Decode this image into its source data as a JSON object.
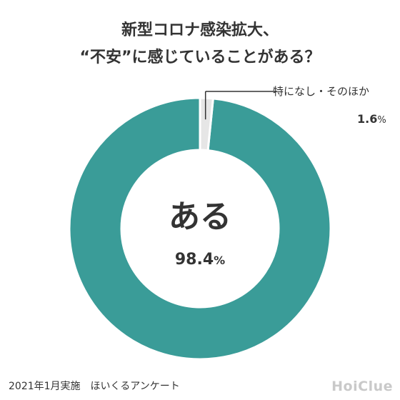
{
  "title": {
    "line1": "新型コロナ感染拡大、",
    "line2": "“不安”に感じていることがある？"
  },
  "chart_data": {
    "type": "pie",
    "subtype": "donut",
    "title": "新型コロナ感染拡大、“不安”に感じていることがある？",
    "slices": [
      {
        "label": "ある",
        "value": 98.4,
        "display": "98.4",
        "unit": "%",
        "color": "#3a9c98"
      },
      {
        "label": "特になし・そのほか",
        "value": 1.6,
        "display": "1.6",
        "unit": "%",
        "color": "#e6e6e6"
      }
    ],
    "legend": "none"
  },
  "footer": "2021年1月実施　ほいくるアンケート",
  "logo": "HoiClue"
}
